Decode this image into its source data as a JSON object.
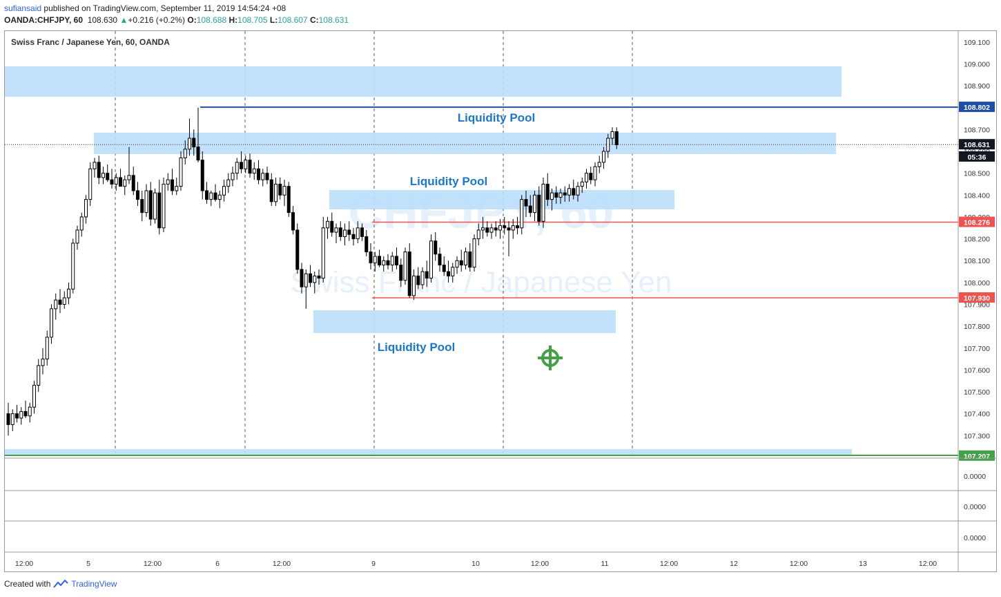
{
  "header": {
    "user": "sufiansaid",
    "published": "published on TradingView.com, September 11, 2019 14:54:24 +08",
    "symbol": "OANDA:CHFJPY, 60",
    "last": "108.630",
    "change": "+0.216 (+0.2%)",
    "open_label": "O:",
    "open": "108.688",
    "high_label": "H:",
    "high": "108.705",
    "low_label": "L:",
    "low": "108.607",
    "close_label": "C:",
    "close": "108.631"
  },
  "footer": {
    "created_with": "Created with",
    "brand": "TradingView"
  },
  "chart_data": {
    "type": "candlestick",
    "title": "Swiss Franc / Japanese Yen, 60, OANDA",
    "watermark_symbol": "CHFJPY, 60",
    "watermark_name": "Swiss Franc / Japanese Yen",
    "ylim": [
      107.2,
      109.15
    ],
    "y_ticks": [
      "109.100",
      "109.000",
      "108.900",
      "108.800",
      "108.700",
      "108.600",
      "108.500",
      "108.400",
      "108.300",
      "108.200",
      "108.100",
      "108.000",
      "107.900",
      "107.800",
      "107.700",
      "107.600",
      "107.500",
      "107.400",
      "107.300"
    ],
    "x_ticks": [
      "12:00",
      "5",
      "12:00",
      "6",
      "12:00",
      "9",
      "10",
      "12:00",
      "11",
      "12:00",
      "12",
      "12:00",
      "13",
      "12:00"
    ],
    "price_tags": [
      {
        "label": "108.802",
        "value": 108.802,
        "color": "#1e4ea8"
      },
      {
        "label": "108.631",
        "value": 108.631,
        "color": "#131722"
      },
      {
        "label": "05:36",
        "value": 108.575,
        "color": "#131722"
      },
      {
        "label": "108.276",
        "value": 108.276,
        "color": "#ef5350"
      },
      {
        "label": "107.930",
        "value": 107.93,
        "color": "#ef5350"
      },
      {
        "label": "107.207",
        "value": 107.207,
        "color": "#43a047"
      }
    ],
    "annotations": [
      "Liquidity Pool",
      "Liquidity Pool",
      "Liquidity Pool"
    ],
    "indicator_panes": [
      "0.0000",
      "0.0000",
      "0.0000"
    ],
    "colors": {
      "zone": "#bbdefb",
      "annotation": "#1976d2",
      "resistance": "#1e4ea8",
      "level": "#ef5350",
      "support": "#43a047",
      "target": "#43a047"
    },
    "candles": [
      [
        107.4,
        107.45,
        107.3,
        107.35
      ],
      [
        107.35,
        107.42,
        107.32,
        107.4
      ],
      [
        107.4,
        107.44,
        107.36,
        107.38
      ],
      [
        107.38,
        107.43,
        107.35,
        107.41
      ],
      [
        107.41,
        107.46,
        107.38,
        107.39
      ],
      [
        107.39,
        107.45,
        107.36,
        107.43
      ],
      [
        107.43,
        107.55,
        107.4,
        107.53
      ],
      [
        107.53,
        107.65,
        107.5,
        107.62
      ],
      [
        107.62,
        107.7,
        107.58,
        107.65
      ],
      [
        107.65,
        107.78,
        107.62,
        107.75
      ],
      [
        107.75,
        107.9,
        107.72,
        107.88
      ],
      [
        107.88,
        107.95,
        107.83,
        107.92
      ],
      [
        107.92,
        107.97,
        107.86,
        107.9
      ],
      [
        107.9,
        107.96,
        107.88,
        107.93
      ],
      [
        107.93,
        108.0,
        107.9,
        107.97
      ],
      [
        107.97,
        108.2,
        107.95,
        108.18
      ],
      [
        108.18,
        108.26,
        108.15,
        108.24
      ],
      [
        108.24,
        108.32,
        108.21,
        108.3
      ],
      [
        108.3,
        108.4,
        108.27,
        108.38
      ],
      [
        108.38,
        108.55,
        108.35,
        108.52
      ],
      [
        108.52,
        108.57,
        108.48,
        108.55
      ],
      [
        108.55,
        108.58,
        108.45,
        108.48
      ],
      [
        108.48,
        108.53,
        108.45,
        108.5
      ],
      [
        108.5,
        108.54,
        108.46,
        108.47
      ],
      [
        108.47,
        108.52,
        108.43,
        108.45
      ],
      [
        108.45,
        108.5,
        108.42,
        108.48
      ],
      [
        108.48,
        108.52,
        108.44,
        108.44
      ],
      [
        108.44,
        108.49,
        108.4,
        108.47
      ],
      [
        108.47,
        108.62,
        108.45,
        108.49
      ],
      [
        108.49,
        108.53,
        108.4,
        108.42
      ],
      [
        108.42,
        108.46,
        108.35,
        108.38
      ],
      [
        108.38,
        108.42,
        108.28,
        108.32
      ],
      [
        108.32,
        108.45,
        108.3,
        108.42
      ],
      [
        108.42,
        108.46,
        108.26,
        108.29
      ],
      [
        108.29,
        108.43,
        108.27,
        108.41
      ],
      [
        108.41,
        108.47,
        108.22,
        108.25
      ],
      [
        108.25,
        108.48,
        108.23,
        108.45
      ],
      [
        108.45,
        108.5,
        108.42,
        108.47
      ],
      [
        108.47,
        108.52,
        108.4,
        108.42
      ],
      [
        108.42,
        108.48,
        108.4,
        108.44
      ],
      [
        108.44,
        108.6,
        108.42,
        108.57
      ],
      [
        108.57,
        108.65,
        108.54,
        108.61
      ],
      [
        108.61,
        108.75,
        108.58,
        108.66
      ],
      [
        108.66,
        108.7,
        108.58,
        108.62
      ],
      [
        108.62,
        108.8,
        108.55,
        108.56
      ],
      [
        108.56,
        108.6,
        108.38,
        108.42
      ],
      [
        108.42,
        108.46,
        108.36,
        108.38
      ],
      [
        108.38,
        108.42,
        108.35,
        108.41
      ],
      [
        108.41,
        108.45,
        108.37,
        108.38
      ],
      [
        108.38,
        108.42,
        108.34,
        108.4
      ],
      [
        108.4,
        108.47,
        108.37,
        108.44
      ],
      [
        108.44,
        108.5,
        108.41,
        108.47
      ],
      [
        108.47,
        108.53,
        108.44,
        108.5
      ],
      [
        108.5,
        108.57,
        108.47,
        108.55
      ],
      [
        108.55,
        108.6,
        108.5,
        108.52
      ],
      [
        108.52,
        108.58,
        108.5,
        108.56
      ],
      [
        108.56,
        108.59,
        108.48,
        108.5
      ],
      [
        108.5,
        108.55,
        108.47,
        108.52
      ],
      [
        108.52,
        108.56,
        108.45,
        108.47
      ],
      [
        108.47,
        108.52,
        108.44,
        108.5
      ],
      [
        108.5,
        108.53,
        108.45,
        108.47
      ],
      [
        108.47,
        108.5,
        108.35,
        108.37
      ],
      [
        108.37,
        108.48,
        108.35,
        108.45
      ],
      [
        108.45,
        108.48,
        108.38,
        108.4
      ],
      [
        108.4,
        108.47,
        108.35,
        108.44
      ],
      [
        108.44,
        108.46,
        108.3,
        108.32
      ],
      [
        108.32,
        108.35,
        108.22,
        108.24
      ],
      [
        108.24,
        108.27,
        108.04,
        108.06
      ],
      [
        108.06,
        108.09,
        107.95,
        107.98
      ],
      [
        107.98,
        108.06,
        107.88,
        108.04
      ],
      [
        108.04,
        108.08,
        107.98,
        108.0
      ],
      [
        108.0,
        108.05,
        107.95,
        108.03
      ],
      [
        108.03,
        108.06,
        107.99,
        108.02
      ],
      [
        108.02,
        108.3,
        108.0,
        108.25
      ],
      [
        108.25,
        108.3,
        108.2,
        108.28
      ],
      [
        108.28,
        108.32,
        108.21,
        108.23
      ],
      [
        108.23,
        108.27,
        108.18,
        108.25
      ],
      [
        108.25,
        108.28,
        108.19,
        108.21
      ],
      [
        108.21,
        108.27,
        108.17,
        108.24
      ],
      [
        108.24,
        108.28,
        108.19,
        108.22
      ],
      [
        108.22,
        108.25,
        108.17,
        108.2
      ],
      [
        108.2,
        108.28,
        108.18,
        108.25
      ],
      [
        108.25,
        108.27,
        108.19,
        108.21
      ],
      [
        108.21,
        108.24,
        108.12,
        108.14
      ],
      [
        108.14,
        108.18,
        108.06,
        108.09
      ],
      [
        108.09,
        108.14,
        108.05,
        108.12
      ],
      [
        108.12,
        108.15,
        108.07,
        108.08
      ],
      [
        108.08,
        108.12,
        108.05,
        108.1
      ],
      [
        108.1,
        108.13,
        108.06,
        108.08
      ],
      [
        108.08,
        108.14,
        108.05,
        108.12
      ],
      [
        108.12,
        108.16,
        108.06,
        108.08
      ],
      [
        108.08,
        108.11,
        107.98,
        108.01
      ],
      [
        108.01,
        108.16,
        107.99,
        108.14
      ],
      [
        108.14,
        108.18,
        107.93,
        107.94
      ],
      [
        107.94,
        108.06,
        107.92,
        108.03
      ],
      [
        108.03,
        108.07,
        107.97,
        107.99
      ],
      [
        107.99,
        108.07,
        107.97,
        108.05
      ],
      [
        108.05,
        108.1,
        107.98,
        108.02
      ],
      [
        108.02,
        108.22,
        108.0,
        108.19
      ],
      [
        108.19,
        108.23,
        108.1,
        108.13
      ],
      [
        108.13,
        108.16,
        108.05,
        108.08
      ],
      [
        108.08,
        108.12,
        108.03,
        108.05
      ],
      [
        108.05,
        108.1,
        108.0,
        108.03
      ],
      [
        108.03,
        108.09,
        108.0,
        108.07
      ],
      [
        108.07,
        108.12,
        108.04,
        108.1
      ],
      [
        108.1,
        108.15,
        108.05,
        108.08
      ],
      [
        108.08,
        108.16,
        108.06,
        108.14
      ],
      [
        108.14,
        108.18,
        108.05,
        108.07
      ],
      [
        108.07,
        108.22,
        108.05,
        108.2
      ],
      [
        108.2,
        108.27,
        108.17,
        108.24
      ],
      [
        108.24,
        108.3,
        108.2,
        108.25
      ],
      [
        108.25,
        108.28,
        108.21,
        108.23
      ],
      [
        108.23,
        108.27,
        108.2,
        108.25
      ],
      [
        108.25,
        108.28,
        108.21,
        108.24
      ],
      [
        108.24,
        108.29,
        108.2,
        108.26
      ],
      [
        108.26,
        108.3,
        108.22,
        108.25
      ],
      [
        108.25,
        108.28,
        108.12,
        108.24
      ],
      [
        108.24,
        108.29,
        108.2,
        108.26
      ],
      [
        108.26,
        108.3,
        108.22,
        108.25
      ],
      [
        108.25,
        108.4,
        108.22,
        108.38
      ],
      [
        108.38,
        108.42,
        108.3,
        108.35
      ],
      [
        108.35,
        108.4,
        108.3,
        108.32
      ],
      [
        108.32,
        108.42,
        108.28,
        108.4
      ],
      [
        108.4,
        108.44,
        108.26,
        108.28
      ],
      [
        108.28,
        108.48,
        108.25,
        108.45
      ],
      [
        108.45,
        108.5,
        108.35,
        108.38
      ],
      [
        108.38,
        108.43,
        108.33,
        108.41
      ],
      [
        108.41,
        108.44,
        108.36,
        108.39
      ],
      [
        108.39,
        108.43,
        108.36,
        108.41
      ],
      [
        108.41,
        108.44,
        108.37,
        108.4
      ],
      [
        108.4,
        108.45,
        108.37,
        108.43
      ],
      [
        108.43,
        108.47,
        108.38,
        108.4
      ],
      [
        108.4,
        108.46,
        108.37,
        108.44
      ],
      [
        108.44,
        108.48,
        108.41,
        108.46
      ],
      [
        108.46,
        108.52,
        108.43,
        108.5
      ],
      [
        108.5,
        108.53,
        108.45,
        108.47
      ],
      [
        108.47,
        108.55,
        108.44,
        108.53
      ],
      [
        108.53,
        108.58,
        108.5,
        108.55
      ],
      [
        108.55,
        108.62,
        108.52,
        108.6
      ],
      [
        108.6,
        108.68,
        108.57,
        108.66
      ],
      [
        108.66,
        108.71,
        108.63,
        108.69
      ],
      [
        108.69,
        108.71,
        108.61,
        108.63
      ]
    ]
  }
}
